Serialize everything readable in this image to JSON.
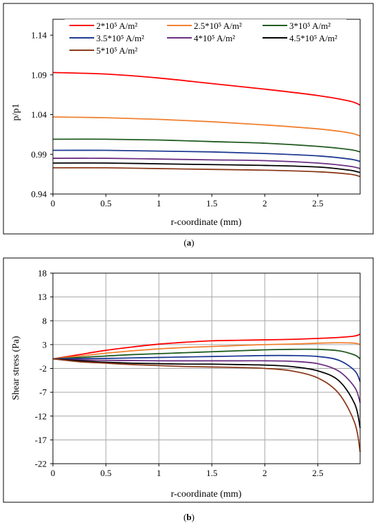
{
  "legend": {
    "entries": [
      "2*10⁵ A/m²",
      "2.5*10⁵ A/m²",
      "3*10⁵ A/m²",
      "3.5*10⁵ A/m²",
      "4*10⁵ A/m²",
      "4.5*10⁵ A/m²",
      "5*10⁵ A/m²"
    ]
  },
  "captions": {
    "a": "a",
    "b": "b"
  },
  "chart_data": [
    {
      "type": "line",
      "title": "",
      "xlabel": "r-coordinate (mm)",
      "ylabel": "p/p1",
      "xlim": [
        0,
        2.9
      ],
      "ylim": [
        0.94,
        1.16
      ],
      "xticks": [
        "0",
        "0.5",
        "1",
        "1.5",
        "2",
        "2.5"
      ],
      "yticks": [
        "0.94",
        "0.99",
        "1.04",
        "1.09",
        "1.14"
      ],
      "grid": false,
      "legend_position": "top",
      "series": [
        {
          "name": "2*10⁵ A/m²",
          "color": "#ff0000",
          "x": [
            0,
            0.5,
            1,
            1.5,
            2,
            2.5,
            2.8,
            2.9
          ],
          "y": [
            1.093,
            1.091,
            1.086,
            1.079,
            1.072,
            1.064,
            1.057,
            1.052
          ]
        },
        {
          "name": "2.5*10⁵ A/m²",
          "color": "#f08030",
          "x": [
            0,
            0.5,
            1,
            1.5,
            2,
            2.5,
            2.8,
            2.9
          ],
          "y": [
            1.037,
            1.036,
            1.034,
            1.031,
            1.027,
            1.022,
            1.017,
            1.013
          ]
        },
        {
          "name": "3*10⁵ A/m²",
          "color": "#1e5a1e",
          "x": [
            0,
            0.5,
            1,
            1.5,
            2,
            2.5,
            2.8,
            2.9
          ],
          "y": [
            1.009,
            1.009,
            1.008,
            1.006,
            1.004,
            1.0,
            0.996,
            0.993
          ]
        },
        {
          "name": "3.5*10⁵ A/m²",
          "color": "#1f3a93",
          "x": [
            0,
            0.5,
            1,
            1.5,
            2,
            2.5,
            2.8,
            2.9
          ],
          "y": [
            0.995,
            0.995,
            0.994,
            0.993,
            0.991,
            0.988,
            0.984,
            0.981
          ]
        },
        {
          "name": "4*10⁵ A/m²",
          "color": "#6b2d82",
          "x": [
            0,
            0.5,
            1,
            1.5,
            2,
            2.5,
            2.8,
            2.9
          ],
          "y": [
            0.985,
            0.985,
            0.984,
            0.983,
            0.982,
            0.979,
            0.975,
            0.972
          ]
        },
        {
          "name": "4.5*10⁵ A/m²",
          "color": "#000000",
          "x": [
            0,
            0.5,
            1,
            1.5,
            2,
            2.5,
            2.8,
            2.9
          ],
          "y": [
            0.979,
            0.979,
            0.978,
            0.977,
            0.976,
            0.974,
            0.97,
            0.967
          ]
        },
        {
          "name": "5*10⁵ A/m²",
          "color": "#8b3a1a",
          "x": [
            0,
            0.5,
            1,
            1.5,
            2,
            2.5,
            2.8,
            2.9
          ],
          "y": [
            0.973,
            0.973,
            0.972,
            0.971,
            0.97,
            0.968,
            0.965,
            0.962
          ]
        }
      ]
    },
    {
      "type": "line",
      "title": "",
      "xlabel": "r-coordinate (mm)",
      "ylabel": "Shear stress (Pa)",
      "xlim": [
        0,
        2.9
      ],
      "ylim": [
        -22,
        18
      ],
      "xticks": [
        "0",
        "0.5",
        "1",
        "1.5",
        "2",
        "2.5"
      ],
      "yticks": [
        "18",
        "13",
        "8",
        "3",
        "-2",
        "-7",
        "-12",
        "-17",
        "-22"
      ],
      "grid": true,
      "series": [
        {
          "name": "2*10⁵ A/m²",
          "color": "#ff0000",
          "x": [
            0,
            0.25,
            0.5,
            0.75,
            1,
            1.25,
            1.5,
            1.75,
            2,
            2.25,
            2.5,
            2.7,
            2.85,
            2.9
          ],
          "y": [
            0,
            0.9,
            1.8,
            2.5,
            3.1,
            3.5,
            3.8,
            3.9,
            4.0,
            4.1,
            4.3,
            4.5,
            4.8,
            5.2
          ]
        },
        {
          "name": "2.5*10⁵ A/m²",
          "color": "#f08030",
          "x": [
            0,
            0.25,
            0.5,
            0.75,
            1,
            1.25,
            1.5,
            1.75,
            2,
            2.25,
            2.5,
            2.7,
            2.85,
            2.9
          ],
          "y": [
            0,
            0.6,
            1.2,
            1.7,
            2.1,
            2.4,
            2.6,
            2.8,
            3.0,
            3.1,
            3.3,
            3.4,
            3.3,
            3.0
          ]
        },
        {
          "name": "3*10⁵ A/m²",
          "color": "#1e5a1e",
          "x": [
            0,
            0.25,
            0.5,
            0.75,
            1,
            1.25,
            1.5,
            1.75,
            2,
            2.25,
            2.5,
            2.7,
            2.85,
            2.9
          ],
          "y": [
            0,
            0.3,
            0.6,
            0.9,
            1.1,
            1.3,
            1.5,
            1.7,
            1.9,
            2.0,
            2.0,
            1.7,
            0.8,
            0.0
          ]
        },
        {
          "name": "3.5*10⁵ A/m²",
          "color": "#1f3a93",
          "x": [
            0,
            0.25,
            0.5,
            0.75,
            1,
            1.25,
            1.5,
            1.75,
            2,
            2.25,
            2.5,
            2.7,
            2.85,
            2.9
          ],
          "y": [
            0,
            0.05,
            0.1,
            0.2,
            0.3,
            0.4,
            0.5,
            0.6,
            0.7,
            0.7,
            0.5,
            -0.3,
            -2.5,
            -4.8
          ]
        },
        {
          "name": "4*10⁵ A/m²",
          "color": "#6b2d82",
          "x": [
            0,
            0.25,
            0.5,
            0.75,
            1,
            1.25,
            1.5,
            1.75,
            2,
            2.25,
            2.5,
            2.7,
            2.85,
            2.9
          ],
          "y": [
            0,
            -0.2,
            -0.3,
            -0.35,
            -0.4,
            -0.4,
            -0.4,
            -0.4,
            -0.4,
            -0.5,
            -1.0,
            -2.6,
            -6.0,
            -9.2
          ]
        },
        {
          "name": "4.5*10⁵ A/m²",
          "color": "#000000",
          "x": [
            0,
            0.25,
            0.5,
            0.75,
            1,
            1.25,
            1.5,
            1.75,
            2,
            2.25,
            2.5,
            2.7,
            2.85,
            2.9
          ],
          "y": [
            0,
            -0.4,
            -0.7,
            -0.9,
            -1.0,
            -1.1,
            -1.1,
            -1.2,
            -1.3,
            -1.6,
            -2.5,
            -4.6,
            -9.5,
            -14.5
          ]
        },
        {
          "name": "5*10⁵ A/m²",
          "color": "#8b3a1a",
          "x": [
            0,
            0.25,
            0.5,
            0.75,
            1,
            1.25,
            1.5,
            1.75,
            2,
            2.25,
            2.5,
            2.7,
            2.85,
            2.9
          ],
          "y": [
            0,
            -0.6,
            -0.9,
            -1.2,
            -1.4,
            -1.6,
            -1.7,
            -1.8,
            -2.0,
            -2.5,
            -4.0,
            -7.3,
            -13.5,
            -19.5
          ]
        }
      ]
    }
  ]
}
